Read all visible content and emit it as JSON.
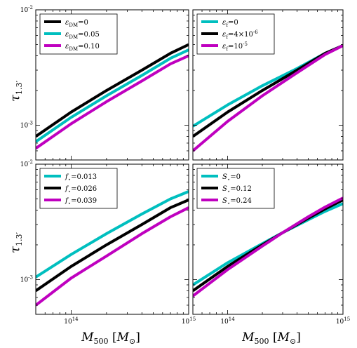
{
  "figure": {
    "ylabel": "τ1.3′",
    "xlabel": "M500 [M⊙]"
  },
  "colors": {
    "black": "#000000",
    "cyan": "#00bfbf",
    "magenta": "#bf00bf"
  },
  "chart_data": [
    {
      "type": "line",
      "panel": "top-left",
      "xscale": "log",
      "yscale": "log",
      "xlim": [
        50000000000000,
        1000000000000000
      ],
      "ylim": [
        0.0005,
        0.01
      ],
      "y_tick_labels": [
        "10^-2",
        "10^-3"
      ],
      "x_tick_labels": [],
      "legend_position": "top-left",
      "grid": false,
      "series": [
        {
          "name": "ε_DM=0",
          "color": "#000000",
          "x": [
            50000000000000.0,
            100000000000000.0,
            200000000000000.0,
            400000000000000.0,
            700000000000000.0,
            1000000000000000.0
          ],
          "y": [
            0.0008,
            0.0013,
            0.002,
            0.003,
            0.0042,
            0.005
          ]
        },
        {
          "name": "ε_DM=0.05",
          "color": "#00bfbf",
          "x": [
            50000000000000.0,
            100000000000000.0,
            200000000000000.0,
            400000000000000.0,
            700000000000000.0,
            1000000000000000.0
          ],
          "y": [
            0.00072,
            0.00117,
            0.0018,
            0.0027,
            0.0038,
            0.0045
          ]
        },
        {
          "name": "ε_DM=0.10",
          "color": "#bf00bf",
          "x": [
            50000000000000.0,
            100000000000000.0,
            200000000000000.0,
            400000000000000.0,
            700000000000000.0,
            1000000000000000.0
          ],
          "y": [
            0.00063,
            0.00103,
            0.0016,
            0.00242,
            0.0034,
            0.004
          ]
        }
      ]
    },
    {
      "type": "line",
      "panel": "top-right",
      "xscale": "log",
      "yscale": "log",
      "xlim": [
        50000000000000,
        1000000000000000
      ],
      "ylim": [
        0.0005,
        0.01
      ],
      "y_tick_labels": [],
      "x_tick_labels": [],
      "legend_position": "top-left",
      "grid": false,
      "series": [
        {
          "name": "ε_f=0",
          "color": "#00bfbf",
          "x": [
            50000000000000.0,
            100000000000000.0,
            200000000000000.0,
            400000000000000.0,
            700000000000000.0,
            1000000000000000.0
          ],
          "y": [
            0.00098,
            0.0015,
            0.0022,
            0.0031,
            0.0042,
            0.0049
          ]
        },
        {
          "name": "ε_f=4×10^-6",
          "color": "#000000",
          "x": [
            50000000000000.0,
            100000000000000.0,
            200000000000000.0,
            400000000000000.0,
            700000000000000.0,
            1000000000000000.0
          ],
          "y": [
            0.0008,
            0.0013,
            0.002,
            0.003,
            0.0042,
            0.0049
          ]
        },
        {
          "name": "ε_f=10^-5",
          "color": "#bf00bf",
          "x": [
            50000000000000.0,
            100000000000000.0,
            200000000000000.0,
            400000000000000.0,
            700000000000000.0,
            1000000000000000.0
          ],
          "y": [
            0.0006,
            0.00108,
            0.0018,
            0.00285,
            0.0041,
            0.0049
          ]
        }
      ]
    },
    {
      "type": "line",
      "panel": "bottom-left",
      "xscale": "log",
      "yscale": "log",
      "xlim": [
        50000000000000,
        1000000000000000
      ],
      "ylim": [
        0.0005,
        0.01
      ],
      "y_tick_labels": [
        "10^-2",
        "10^-3"
      ],
      "x_tick_labels": [
        "10^14",
        "10^15"
      ],
      "legend_position": "top-left",
      "grid": false,
      "series": [
        {
          "name": "f⋆=0.013",
          "color": "#00bfbf",
          "x": [
            50000000000000.0,
            100000000000000.0,
            200000000000000.0,
            400000000000000.0,
            700000000000000.0,
            1000000000000000.0
          ],
          "y": [
            0.00105,
            0.00165,
            0.0025,
            0.0037,
            0.005,
            0.0058
          ]
        },
        {
          "name": "f⋆=0.026",
          "color": "#000000",
          "x": [
            50000000000000.0,
            100000000000000.0,
            200000000000000.0,
            400000000000000.0,
            700000000000000.0,
            1000000000000000.0
          ],
          "y": [
            0.0008,
            0.0013,
            0.002,
            0.003,
            0.0042,
            0.0049
          ]
        },
        {
          "name": "f⋆=0.039",
          "color": "#bf00bf",
          "x": [
            50000000000000.0,
            100000000000000.0,
            200000000000000.0,
            400000000000000.0,
            700000000000000.0,
            1000000000000000.0
          ],
          "y": [
            0.0006,
            0.00103,
            0.0016,
            0.0025,
            0.0035,
            0.0042
          ]
        }
      ]
    },
    {
      "type": "line",
      "panel": "bottom-right",
      "xscale": "log",
      "yscale": "log",
      "xlim": [
        50000000000000,
        1000000000000000
      ],
      "ylim": [
        0.0005,
        0.01
      ],
      "y_tick_labels": [],
      "x_tick_labels": [
        "10^14",
        "10^15"
      ],
      "legend_position": "top-left",
      "grid": false,
      "series": [
        {
          "name": "S⋆=0",
          "color": "#00bfbf",
          "x": [
            50000000000000.0,
            100000000000000.0,
            200000000000000.0,
            300000000000000.0,
            500000000000000.0,
            700000000000000.0,
            1000000000000000.0
          ],
          "y": [
            0.0009,
            0.0014,
            0.00205,
            0.00255,
            0.0033,
            0.0039,
            0.00455
          ]
        },
        {
          "name": "S⋆=0.12",
          "color": "#000000",
          "x": [
            50000000000000.0,
            100000000000000.0,
            200000000000000.0,
            300000000000000.0,
            500000000000000.0,
            700000000000000.0,
            1000000000000000.0
          ],
          "y": [
            0.0008,
            0.0013,
            0.002,
            0.00255,
            0.0034,
            0.0041,
            0.0049
          ]
        },
        {
          "name": "S⋆=0.24",
          "color": "#bf00bf",
          "x": [
            50000000000000.0,
            100000000000000.0,
            200000000000000.0,
            300000000000000.0,
            500000000000000.0,
            700000000000000.0,
            1000000000000000.0
          ],
          "y": [
            0.00072,
            0.00122,
            0.00195,
            0.00255,
            0.0035,
            0.00425,
            0.0051
          ]
        }
      ]
    }
  ]
}
